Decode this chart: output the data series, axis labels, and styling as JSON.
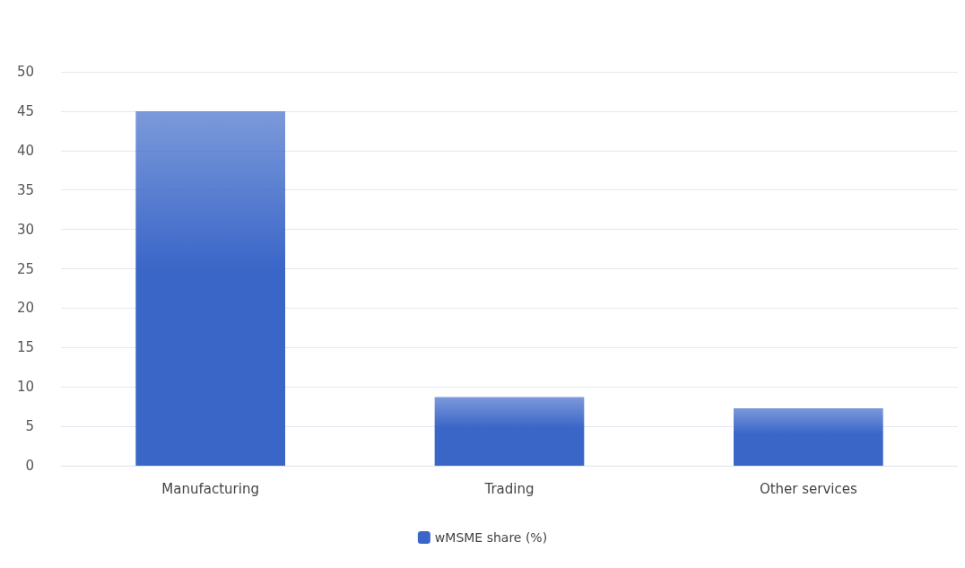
{
  "chart_data": {
    "type": "bar",
    "categories": [
      "Manufacturing",
      "Trading",
      "Other services"
    ],
    "series": [
      {
        "name": "wMSME share (%)",
        "color": "#3a66c8",
        "values": [
          45,
          8.7,
          7.3
        ]
      }
    ],
    "ylim": [
      0,
      50
    ],
    "yticks": [
      0,
      5,
      10,
      15,
      20,
      25,
      30,
      35,
      40,
      45,
      50
    ],
    "grid": "y",
    "legend": "bottom"
  }
}
